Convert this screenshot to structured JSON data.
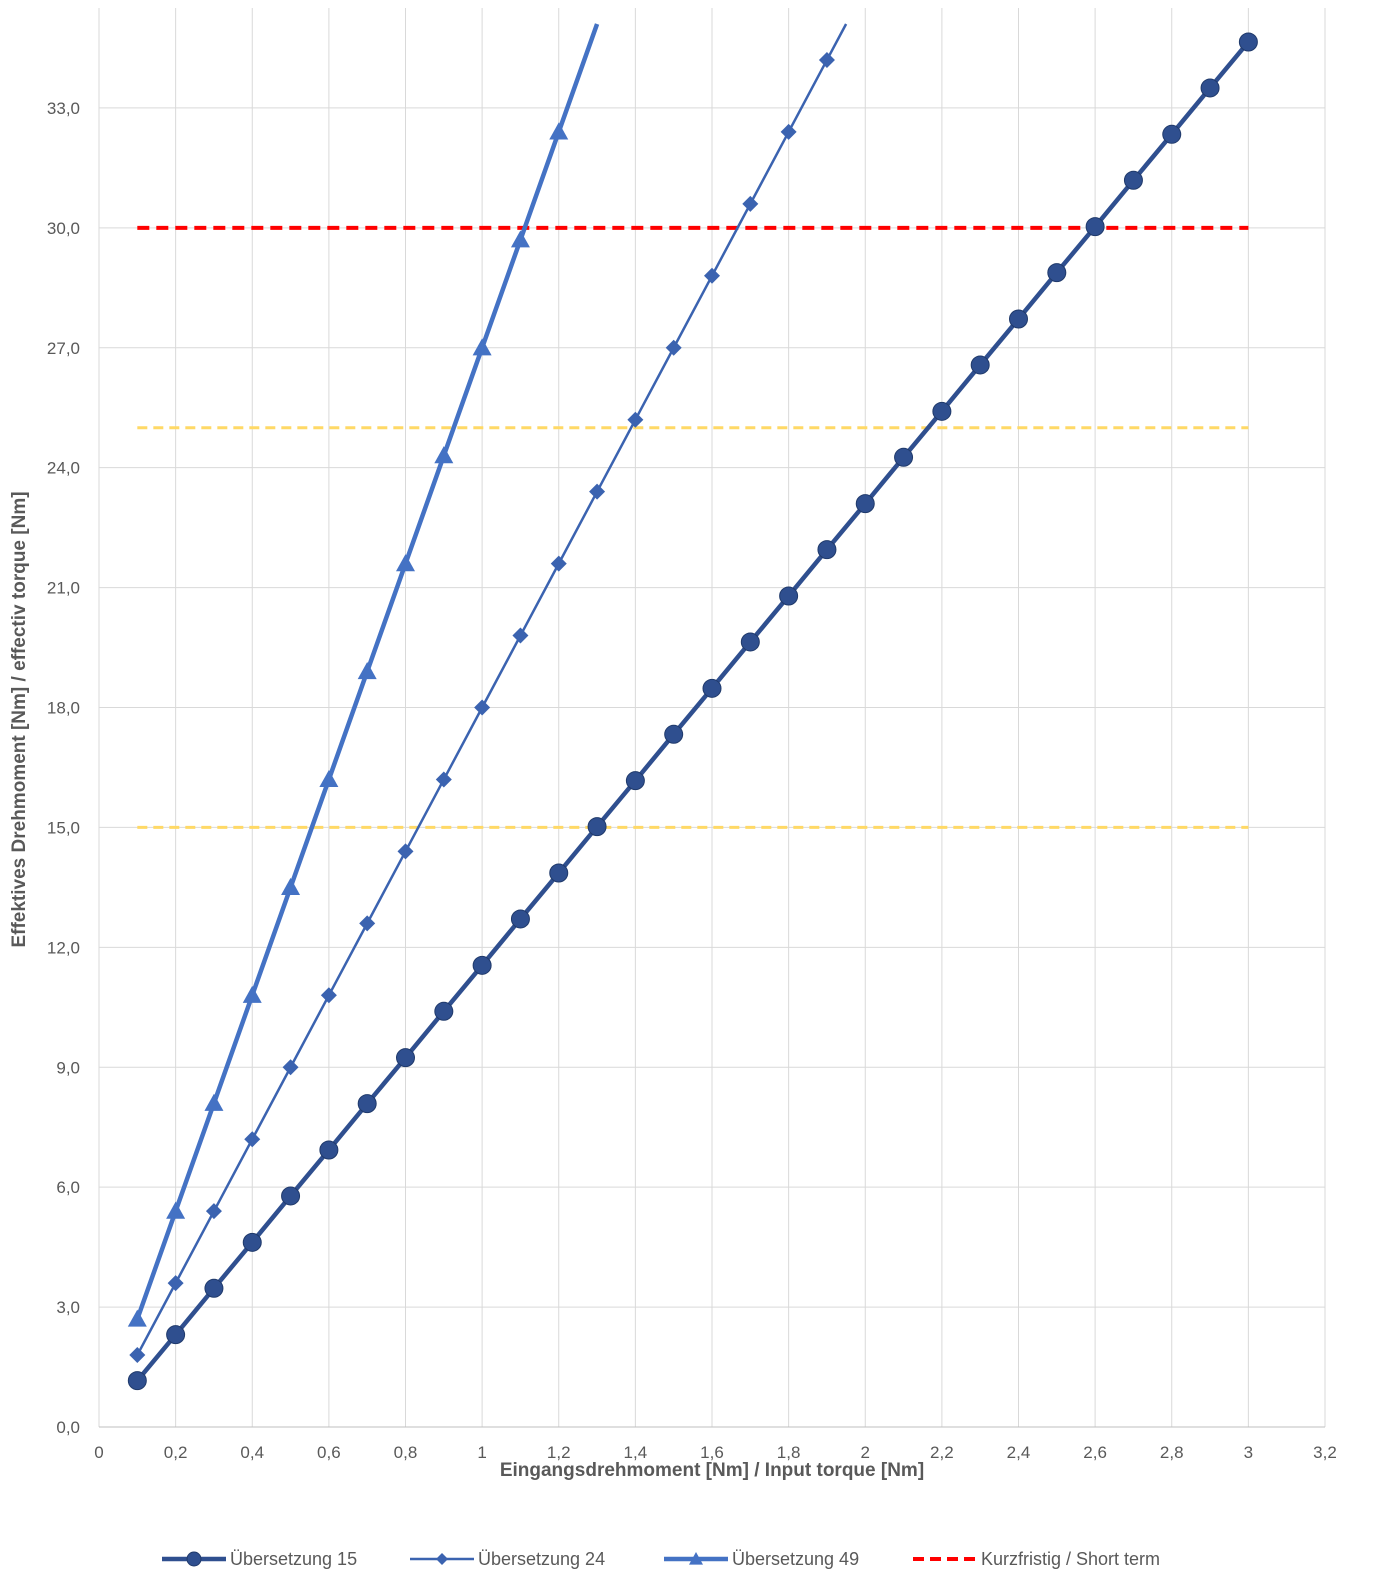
{
  "chart_data": {
    "type": "line",
    "title": "",
    "xlabel": "Eingangsdrehmoment [Nm] / Input torque [Nm]",
    "ylabel": "Effektives Drehmoment [Nm] / effectiv torque [Nm]",
    "xlim": [
      0,
      3.2
    ],
    "ylim": [
      0,
      35.5
    ],
    "grid": true,
    "legend_position": "bottom",
    "x_ticks": [
      "0",
      "0,2",
      "0,4",
      "0,6",
      "0,8",
      "1",
      "1,2",
      "1,4",
      "1,6",
      "1,8",
      "2",
      "2,2",
      "2,4",
      "2,6",
      "2,8",
      "3",
      "3,2"
    ],
    "y_ticks": [
      "0,0",
      "3,0",
      "6,0",
      "9,0",
      "12,0",
      "15,0",
      "18,0",
      "21,0",
      "24,0",
      "27,0",
      "30,0",
      "33,0"
    ],
    "series": [
      {
        "name": "Übersetzung 15",
        "color": "#2f4f8f",
        "marker": "circle",
        "x": [
          0.1,
          0.2,
          0.3,
          0.4,
          0.5,
          0.6,
          0.7,
          0.8,
          0.9,
          1.0,
          1.1,
          1.2,
          1.3,
          1.4,
          1.5,
          1.6,
          1.7,
          1.8,
          1.9,
          2.0,
          2.1,
          2.2,
          2.3,
          2.4,
          2.5,
          2.6,
          2.7,
          2.8,
          2.9,
          3.0
        ],
        "y": [
          1.16,
          2.31,
          3.47,
          4.62,
          5.78,
          6.93,
          8.09,
          9.24,
          10.4,
          11.55,
          12.71,
          13.86,
          15.02,
          16.17,
          17.33,
          18.48,
          19.64,
          20.79,
          21.95,
          23.1,
          24.26,
          25.41,
          26.57,
          27.72,
          28.88,
          30.03,
          31.19,
          32.34,
          33.5,
          34.65
        ]
      },
      {
        "name": "Übersetzung 24",
        "color": "#3b63b0",
        "marker": "diamond",
        "x": [
          0.1,
          0.2,
          0.3,
          0.4,
          0.5,
          0.6,
          0.7,
          0.8,
          0.9,
          1.0,
          1.1,
          1.2,
          1.3,
          1.4,
          1.5,
          1.6,
          1.7,
          1.8,
          1.9,
          1.95
        ],
        "y": [
          1.8,
          3.6,
          5.4,
          7.2,
          9.0,
          10.8,
          12.6,
          14.4,
          16.2,
          18.0,
          19.8,
          21.6,
          23.4,
          25.2,
          27.0,
          28.8,
          30.6,
          32.4,
          34.2,
          35.1
        ]
      },
      {
        "name": "Übersetzung 49",
        "color": "#4472c4",
        "marker": "triangle",
        "x": [
          0.1,
          0.2,
          0.3,
          0.4,
          0.5,
          0.6,
          0.7,
          0.8,
          0.9,
          1.0,
          1.1,
          1.2,
          1.3
        ],
        "y": [
          2.7,
          5.4,
          8.1,
          10.8,
          13.5,
          16.2,
          18.9,
          21.6,
          24.3,
          27.0,
          29.7,
          32.4,
          35.1
        ]
      }
    ],
    "reference_lines": [
      {
        "name": "Kurzfristig / Short term",
        "y": 30,
        "x_range": [
          0.1,
          3.0
        ],
        "color": "#ff0000",
        "style": "dashed",
        "in_legend": true
      },
      {
        "name": "",
        "y": 25,
        "x_range": [
          0.1,
          3.0
        ],
        "color": "#ffd966",
        "style": "dashed",
        "in_legend": false
      },
      {
        "name": "",
        "y": 15,
        "x_range": [
          0.1,
          3.0
        ],
        "color": "#ffd966",
        "style": "dashed",
        "in_legend": false
      }
    ],
    "legend_entries": [
      "Übersetzung 15",
      "Übersetzung 24",
      "Übersetzung 49",
      "Kurzfristig / Short term"
    ]
  }
}
